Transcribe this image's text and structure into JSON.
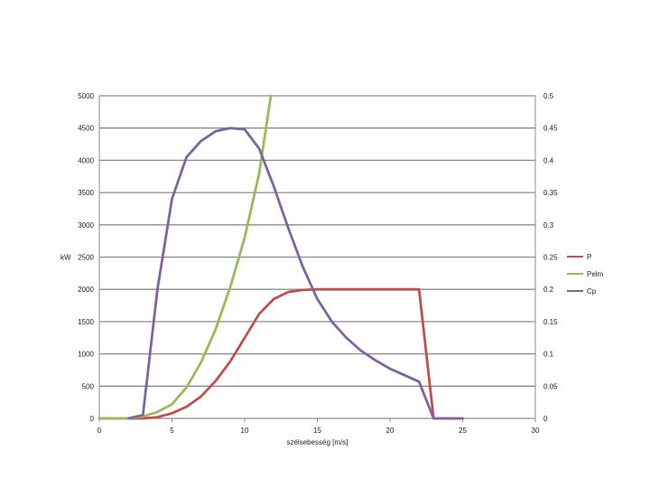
{
  "chart_data": {
    "type": "line",
    "xlabel": "szélsebesség [m/s]",
    "ylabel": "kW",
    "xlim": [
      0,
      30
    ],
    "ylim": [
      0,
      5000
    ],
    "y2lim": [
      0,
      0.5
    ],
    "x_ticks": [
      "0",
      "5",
      "10",
      "15",
      "20",
      "25",
      "30"
    ],
    "y_ticks": [
      "0",
      "500",
      "1000",
      "1500",
      "2000",
      "2500",
      "3000",
      "3500",
      "4000",
      "4500",
      "5000"
    ],
    "y2_ticks": [
      "0",
      "0.05",
      "0.1",
      "0.15",
      "0.2",
      "0.25",
      "0.3",
      "0.35",
      "0.4",
      "0.45",
      "0.5"
    ],
    "grid": true,
    "legend_position": "right",
    "series": [
      {
        "name": "P",
        "color": "#c0504d",
        "axis": "left",
        "x": [
          0,
          2,
          3,
          4,
          5,
          6,
          7,
          8,
          9,
          10,
          11,
          12,
          13,
          14,
          15,
          16,
          17,
          18,
          19,
          20,
          21,
          22,
          23,
          24,
          25
        ],
        "y": [
          0,
          0,
          0,
          20,
          80,
          180,
          340,
          580,
          880,
          1250,
          1620,
          1850,
          1960,
          1990,
          2000,
          2000,
          2000,
          2000,
          2000,
          2000,
          2000,
          2000,
          0,
          0,
          0
        ]
      },
      {
        "name": "Pelm",
        "color": "#9bbb59",
        "axis": "left",
        "x": [
          0,
          2,
          3,
          4,
          5,
          6,
          7,
          8,
          9,
          10,
          11,
          11.8
        ],
        "y": [
          0,
          0,
          30,
          100,
          220,
          480,
          870,
          1380,
          2030,
          2800,
          3800,
          5000
        ]
      },
      {
        "name": "Cp",
        "color": "#8064a2",
        "axis": "right",
        "x": [
          2,
          3,
          4,
          5,
          6,
          7,
          8,
          9,
          10,
          11,
          12,
          13,
          14,
          15,
          16,
          17,
          18,
          19,
          20,
          21,
          22,
          23,
          24,
          25
        ],
        "y": [
          0,
          0.005,
          0.2,
          0.34,
          0.405,
          0.43,
          0.445,
          0.45,
          0.448,
          0.418,
          0.36,
          0.295,
          0.235,
          0.185,
          0.15,
          0.125,
          0.105,
          0.09,
          0.077,
          0.067,
          0.057,
          0,
          0,
          0
        ]
      }
    ]
  }
}
